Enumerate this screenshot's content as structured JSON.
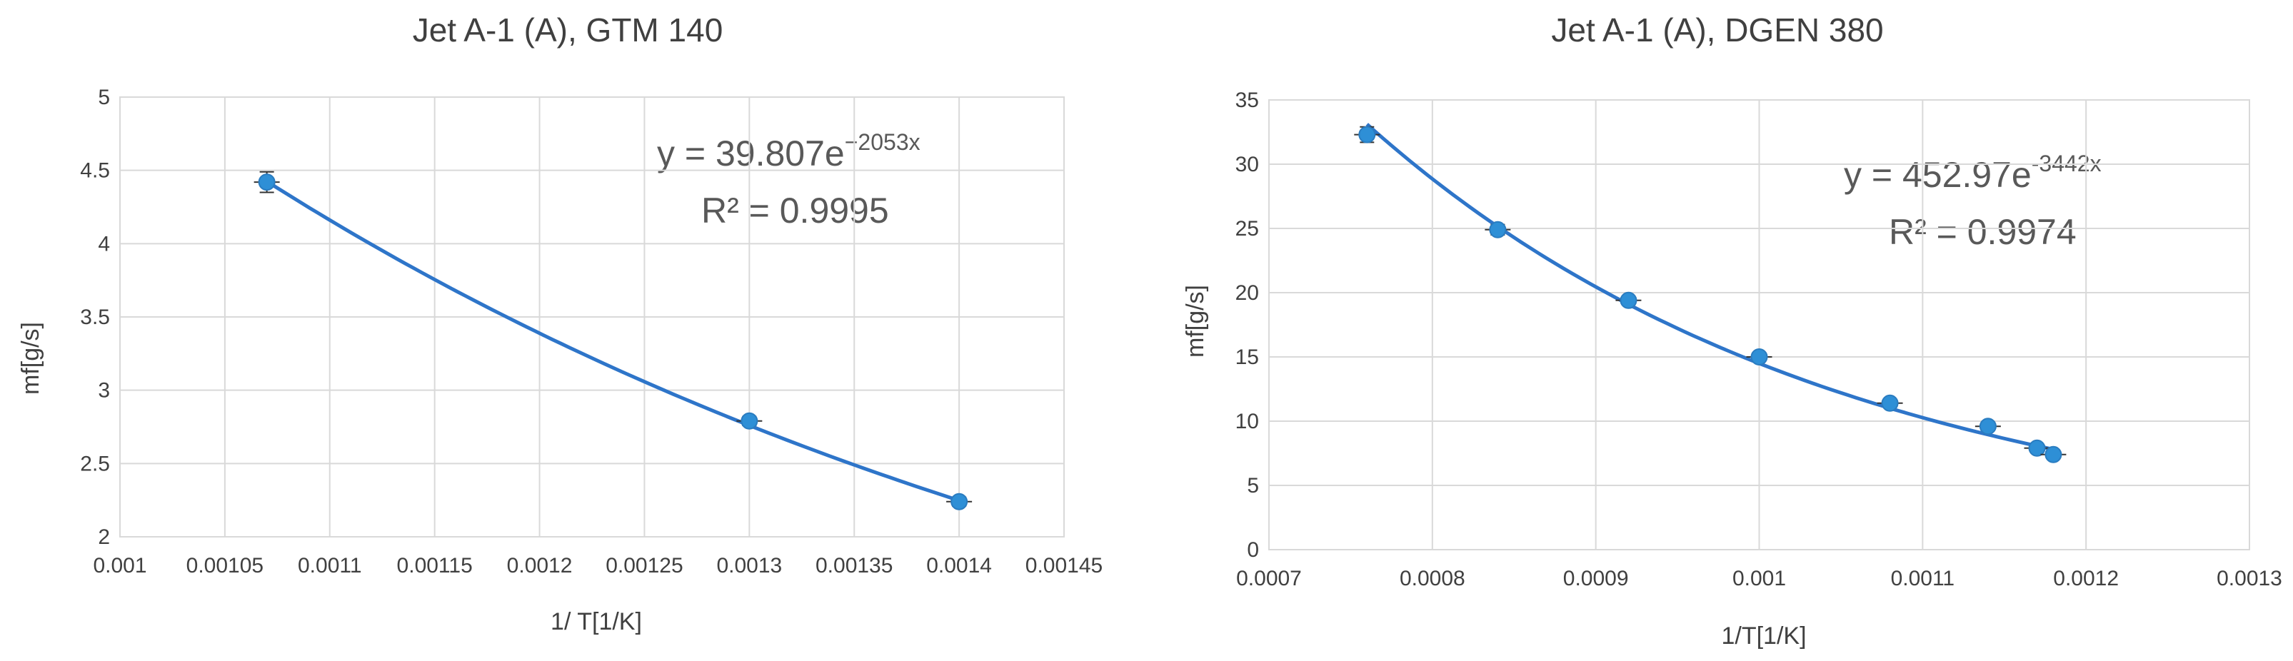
{
  "chart_data": [
    {
      "type": "scatter",
      "title": "Jet A-1 (A), GTM 140",
      "xlabel": "1/ T[1/K]",
      "ylabel": "mf[g/s]",
      "xlim": [
        0.001,
        0.00145
      ],
      "ylim": [
        2,
        5
      ],
      "xticks": [
        "0.001",
        "0.00105",
        "0.0011",
        "0.00115",
        "0.0012",
        "0.00125",
        "0.0013",
        "0.00135",
        "0.0014",
        "0.00145"
      ],
      "yticks": [
        "2",
        "2.5",
        "3",
        "3.5",
        "4",
        "4.5",
        "5"
      ],
      "grid": true,
      "series": [
        {
          "x": [
            0.00107,
            0.0013,
            0.0014
          ],
          "y": [
            4.42,
            2.79,
            2.24
          ],
          "y_error": [
            0.07,
            0.03,
            0.03
          ],
          "color": "#2e8fd6"
        }
      ],
      "trendline": {
        "type": "exponential",
        "a": 39.807,
        "b": -2053,
        "x_range": [
          0.00107,
          0.0014
        ],
        "color": "#2e75c9",
        "equation_base": "y = 39.807e",
        "equation_exp": "−2053x",
        "r2": "R² = 0.9995"
      }
    },
    {
      "type": "scatter",
      "title": "Jet A-1 (A), DGEN 380",
      "xlabel": "1/T[1/K]",
      "ylabel": "mf[g/s]",
      "xlim": [
        0.0007,
        0.0013
      ],
      "ylim": [
        0,
        35
      ],
      "xticks": [
        "0.0007",
        "0.0008",
        "0.0009",
        "0.001",
        "0.0011",
        "0.0012",
        "0.0013"
      ],
      "yticks": [
        "0",
        "5",
        "10",
        "15",
        "20",
        "25",
        "30",
        "35"
      ],
      "grid": true,
      "series": [
        {
          "x": [
            0.00076,
            0.00084,
            0.00092,
            0.001,
            0.00108,
            0.00114,
            0.00117,
            0.00118
          ],
          "y": [
            32.3,
            24.9,
            19.4,
            15.0,
            11.4,
            9.6,
            7.9,
            7.4
          ],
          "y_error": [
            0.6,
            0.4,
            0.3,
            0.3,
            0.3,
            0.3,
            0.2,
            0.2
          ],
          "color": "#2e8fd6"
        }
      ],
      "trendline": {
        "type": "exponential",
        "a": 452.97,
        "b": -3442,
        "x_range": [
          0.00076,
          0.00118
        ],
        "color": "#2e75c9",
        "equation_base": "y = 452.97e",
        "equation_exp": "-3442x",
        "r2": "R² = 0.9974"
      }
    }
  ]
}
